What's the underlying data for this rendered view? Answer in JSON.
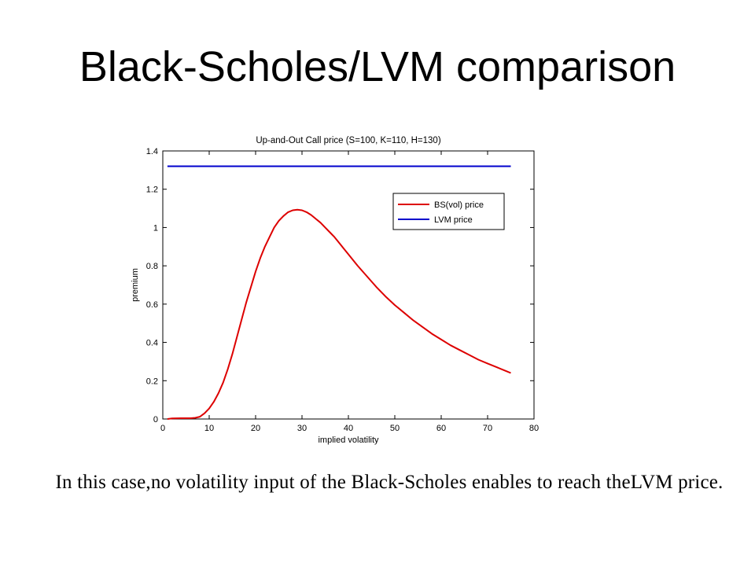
{
  "slide": {
    "title": "Black-Scholes/LVM comparison",
    "caption": "In this case,no volatility input of the Black-Scholes enables to reach theLVM price."
  },
  "chart_data": {
    "type": "line",
    "title": "Up-and-Out Call price (S=100, K=110, H=130)",
    "xlabel": "implied volatility",
    "ylabel": "premium",
    "xlim": [
      0,
      80
    ],
    "ylim": [
      0,
      1.4
    ],
    "xticks": [
      0,
      10,
      20,
      30,
      40,
      50,
      60,
      70,
      80
    ],
    "yticks": [
      0,
      0.2,
      0.4,
      0.6,
      0.8,
      1,
      1.2,
      1.4
    ],
    "ytick_labels": [
      "0",
      "0.2",
      "0.4",
      "0.6",
      "0.8",
      "1",
      "1.2",
      "1.4"
    ],
    "grid": false,
    "legend_position": "top-right",
    "series": [
      {
        "name": "BS(vol) price",
        "color": "#dd0000",
        "x": [
          1,
          2,
          4,
          6,
          7,
          8,
          9,
          10,
          11,
          12,
          13,
          14,
          15,
          16,
          17,
          18,
          19,
          20,
          21,
          22,
          23,
          24,
          25,
          26,
          27,
          28,
          29,
          30,
          31,
          32,
          33,
          34,
          35,
          36,
          37,
          38,
          39,
          40,
          42,
          44,
          46,
          48,
          50,
          52,
          54,
          56,
          58,
          60,
          62,
          64,
          66,
          68,
          70,
          72,
          74,
          75
        ],
        "y": [
          0.0,
          0.003,
          0.004,
          0.004,
          0.006,
          0.012,
          0.03,
          0.055,
          0.09,
          0.135,
          0.19,
          0.26,
          0.34,
          0.43,
          0.52,
          0.61,
          0.69,
          0.77,
          0.84,
          0.9,
          0.95,
          1.0,
          1.035,
          1.06,
          1.08,
          1.09,
          1.093,
          1.09,
          1.08,
          1.065,
          1.045,
          1.025,
          1.0,
          0.975,
          0.95,
          0.92,
          0.89,
          0.86,
          0.8,
          0.745,
          0.69,
          0.64,
          0.595,
          0.555,
          0.515,
          0.48,
          0.445,
          0.415,
          0.385,
          0.36,
          0.335,
          0.31,
          0.29,
          0.27,
          0.25,
          0.24
        ]
      },
      {
        "name": "LVM price",
        "color": "#0000cc",
        "x": [
          1,
          75
        ],
        "y": [
          1.32,
          1.32
        ]
      }
    ]
  }
}
